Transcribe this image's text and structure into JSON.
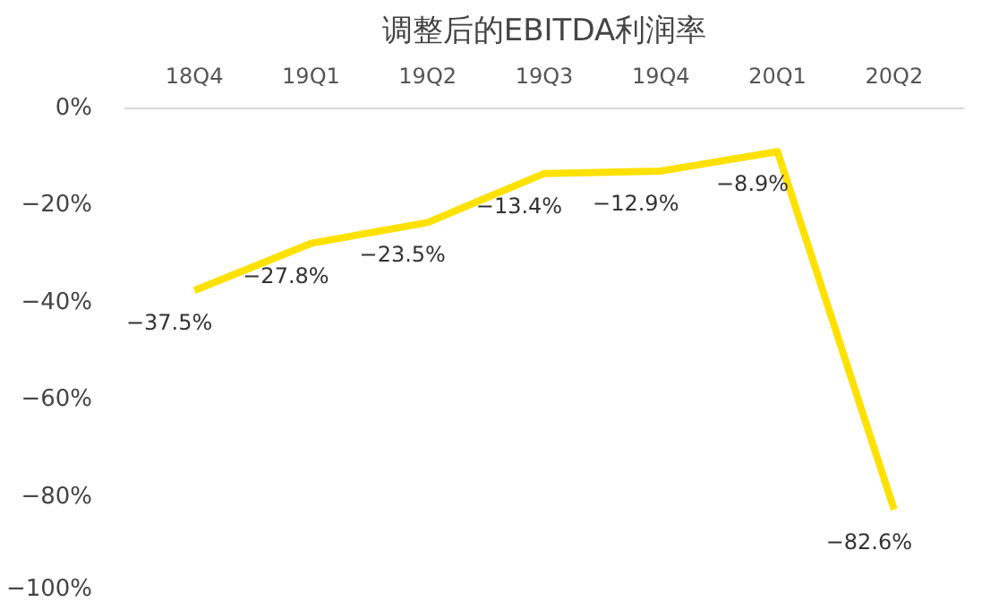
{
  "chart_data": {
    "type": "line",
    "title": "调整后的EBITDA利润率",
    "categories": [
      "18Q4",
      "19Q1",
      "19Q2",
      "19Q3",
      "19Q4",
      "20Q1",
      "20Q2"
    ],
    "series": [
      {
        "color": "#ffe100",
        "values": [
          -37.5,
          -27.8,
          -23.5,
          -13.4,
          -12.9,
          -8.9,
          -82.6
        ]
      }
    ],
    "value_labels": [
      "−37.5%",
      "−27.8%",
      "−23.5%",
      "−13.4%",
      "−12.9%",
      "−8.9%",
      "−82.6%"
    ],
    "ylim": [
      -100,
      0
    ],
    "yticks": [
      {
        "value": 0,
        "label": "0%"
      },
      {
        "value": -20,
        "label": "−20%"
      },
      {
        "value": -40,
        "label": "−40%"
      },
      {
        "value": -60,
        "label": "−60%"
      },
      {
        "value": -80,
        "label": "−80%"
      },
      {
        "value": -100,
        "label": "−100%"
      }
    ],
    "line_style": "solid",
    "grid": false
  }
}
